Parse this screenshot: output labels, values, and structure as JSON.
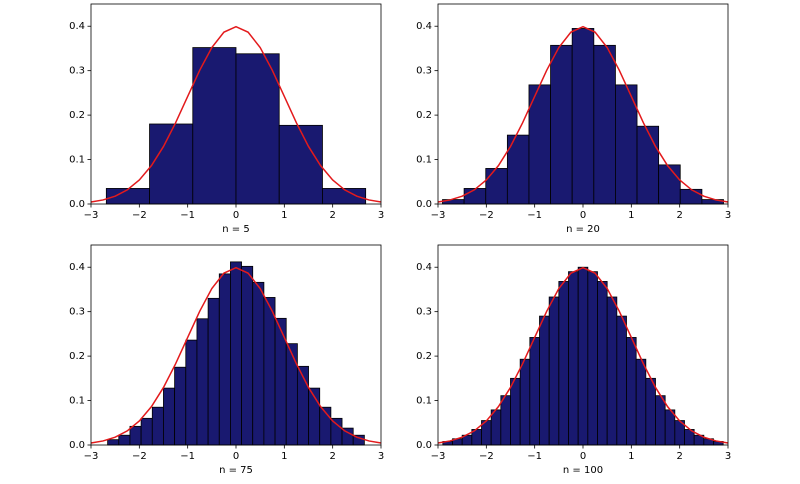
{
  "chart_data": [
    {
      "type": "histogram",
      "xlabel": "n = 5",
      "color": "#191970",
      "edgecolor": "#000000",
      "bins": [
        -2.683,
        -1.789,
        -0.894,
        0,
        0.894,
        1.789,
        2.683
      ],
      "values": [
        0.035,
        0.18,
        0.352,
        0.338,
        0.177,
        0.035
      ],
      "curve": {
        "color": "#e31a1c",
        "x": [
          -3,
          -2.75,
          -2.5,
          -2.25,
          -2,
          -1.75,
          -1.5,
          -1.25,
          -1,
          -0.75,
          -0.5,
          -0.25,
          0,
          0.25,
          0.5,
          0.75,
          1,
          1.25,
          1.5,
          1.75,
          2,
          2.25,
          2.5,
          2.75,
          3
        ],
        "y": [
          0.0044,
          0.0091,
          0.0175,
          0.0317,
          0.054,
          0.0863,
          0.1295,
          0.1826,
          0.242,
          0.3011,
          0.3521,
          0.3867,
          0.3989,
          0.3867,
          0.3521,
          0.3011,
          0.242,
          0.1826,
          0.1295,
          0.0863,
          0.054,
          0.0317,
          0.0175,
          0.0091,
          0.0044
        ]
      },
      "xlim": [
        -3,
        3
      ],
      "ylim": [
        0,
        0.45
      ],
      "xticks": [
        {
          "value": -3,
          "label": "−3"
        },
        {
          "value": -2,
          "label": "−2"
        },
        {
          "value": -1,
          "label": "−1"
        },
        0,
        1,
        2,
        3
      ],
      "yticks": [
        {
          "value": 0,
          "label": "0.0"
        },
        0.1,
        0.2,
        0.3,
        0.4
      ]
    },
    {
      "type": "histogram",
      "xlabel": "n = 20",
      "color": "#191970",
      "edgecolor": "#000000",
      "bins": [
        -2.907,
        -2.46,
        -2.012,
        -1.565,
        -1.118,
        -0.671,
        -0.224,
        0.224,
        0.671,
        1.118,
        1.565,
        2.012,
        2.46,
        2.907
      ],
      "values": [
        0.01,
        0.035,
        0.08,
        0.155,
        0.268,
        0.357,
        0.395,
        0.357,
        0.268,
        0.175,
        0.088,
        0.033,
        0.01
      ],
      "curve": {
        "color": "#e31a1c",
        "x": [
          -3,
          -2.75,
          -2.5,
          -2.25,
          -2,
          -1.75,
          -1.5,
          -1.25,
          -1,
          -0.75,
          -0.5,
          -0.25,
          0,
          0.25,
          0.5,
          0.75,
          1,
          1.25,
          1.5,
          1.75,
          2,
          2.25,
          2.5,
          2.75,
          3
        ],
        "y": [
          0.0044,
          0.0091,
          0.0175,
          0.0317,
          0.054,
          0.0863,
          0.1295,
          0.1826,
          0.242,
          0.3011,
          0.3521,
          0.3867,
          0.3989,
          0.3867,
          0.3521,
          0.3011,
          0.242,
          0.1826,
          0.1295,
          0.0863,
          0.054,
          0.0317,
          0.0175,
          0.0091,
          0.0044
        ]
      },
      "xlim": [
        -3,
        3
      ],
      "ylim": [
        0,
        0.45
      ],
      "xticks": [
        {
          "value": -3,
          "label": "−3"
        },
        {
          "value": -2,
          "label": "−2"
        },
        {
          "value": -1,
          "label": "−1"
        },
        0,
        1,
        2,
        3
      ],
      "yticks": [
        {
          "value": 0,
          "label": "0.0"
        },
        0.1,
        0.2,
        0.3,
        0.4
      ]
    },
    {
      "type": "histogram",
      "xlabel": "n = 75",
      "color": "#191970",
      "edgecolor": "#000000",
      "bins": [
        -2.656,
        -2.425,
        -2.194,
        -1.963,
        -1.732,
        -1.501,
        -1.27,
        -1.039,
        -0.808,
        -0.577,
        -0.346,
        -0.115,
        0.115,
        0.346,
        0.577,
        0.808,
        1.039,
        1.27,
        1.501,
        1.732,
        1.963,
        2.194,
        2.425,
        2.656
      ],
      "values": [
        0.012,
        0.022,
        0.042,
        0.06,
        0.085,
        0.128,
        0.175,
        0.236,
        0.284,
        0.33,
        0.385,
        0.412,
        0.402,
        0.366,
        0.332,
        0.285,
        0.228,
        0.177,
        0.128,
        0.085,
        0.06,
        0.038,
        0.022
      ],
      "curve": {
        "color": "#e31a1c",
        "x": [
          -3,
          -2.75,
          -2.5,
          -2.25,
          -2,
          -1.75,
          -1.5,
          -1.25,
          -1,
          -0.75,
          -0.5,
          -0.25,
          0,
          0.25,
          0.5,
          0.75,
          1,
          1.25,
          1.5,
          1.75,
          2,
          2.25,
          2.5,
          2.75,
          3
        ],
        "y": [
          0.0044,
          0.0091,
          0.0175,
          0.0317,
          0.054,
          0.0863,
          0.1295,
          0.1826,
          0.242,
          0.3011,
          0.3521,
          0.3867,
          0.3989,
          0.3867,
          0.3521,
          0.3011,
          0.242,
          0.1826,
          0.1295,
          0.0863,
          0.054,
          0.0317,
          0.0175,
          0.0091,
          0.0044
        ]
      },
      "xlim": [
        -3,
        3
      ],
      "ylim": [
        0,
        0.45
      ],
      "xticks": [
        {
          "value": -3,
          "label": "−3"
        },
        {
          "value": -2,
          "label": "−2"
        },
        {
          "value": -1,
          "label": "−1"
        },
        0,
        1,
        2,
        3
      ],
      "yticks": [
        {
          "value": 0,
          "label": "0.0"
        },
        0.1,
        0.2,
        0.3,
        0.4
      ]
    },
    {
      "type": "histogram",
      "xlabel": "n = 100",
      "color": "#191970",
      "edgecolor": "#000000",
      "bins": [
        -2.9,
        -2.7,
        -2.5,
        -2.3,
        -2.1,
        -1.9,
        -1.7,
        -1.5,
        -1.3,
        -1.1,
        -0.9,
        -0.7,
        -0.5,
        -0.3,
        -0.1,
        0.1,
        0.3,
        0.5,
        0.7,
        0.9,
        1.1,
        1.3,
        1.5,
        1.7,
        1.9,
        2.1,
        2.3,
        2.5,
        2.7,
        2.9
      ],
      "values": [
        0.008,
        0.014,
        0.022,
        0.035,
        0.055,
        0.079,
        0.111,
        0.15,
        0.193,
        0.242,
        0.29,
        0.333,
        0.368,
        0.39,
        0.4,
        0.39,
        0.368,
        0.333,
        0.29,
        0.242,
        0.193,
        0.15,
        0.111,
        0.079,
        0.055,
        0.035,
        0.022,
        0.014,
        0.008
      ],
      "curve": {
        "color": "#e31a1c",
        "x": [
          -3,
          -2.75,
          -2.5,
          -2.25,
          -2,
          -1.75,
          -1.5,
          -1.25,
          -1,
          -0.75,
          -0.5,
          -0.25,
          0,
          0.25,
          0.5,
          0.75,
          1,
          1.25,
          1.5,
          1.75,
          2,
          2.25,
          2.5,
          2.75,
          3
        ],
        "y": [
          0.0044,
          0.0091,
          0.0175,
          0.0317,
          0.054,
          0.0863,
          0.1295,
          0.1826,
          0.242,
          0.3011,
          0.3521,
          0.3867,
          0.3989,
          0.3867,
          0.3521,
          0.3011,
          0.242,
          0.1826,
          0.1295,
          0.0863,
          0.054,
          0.0317,
          0.0175,
          0.0091,
          0.0044
        ]
      },
      "xlim": [
        -3,
        3
      ],
      "ylim": [
        0,
        0.45
      ],
      "xticks": [
        {
          "value": -3,
          "label": "−3"
        },
        {
          "value": -2,
          "label": "−2"
        },
        {
          "value": -1,
          "label": "−1"
        },
        0,
        1,
        2,
        3
      ],
      "yticks": [
        {
          "value": 0,
          "label": "0.0"
        },
        0.1,
        0.2,
        0.3,
        0.4
      ]
    }
  ]
}
